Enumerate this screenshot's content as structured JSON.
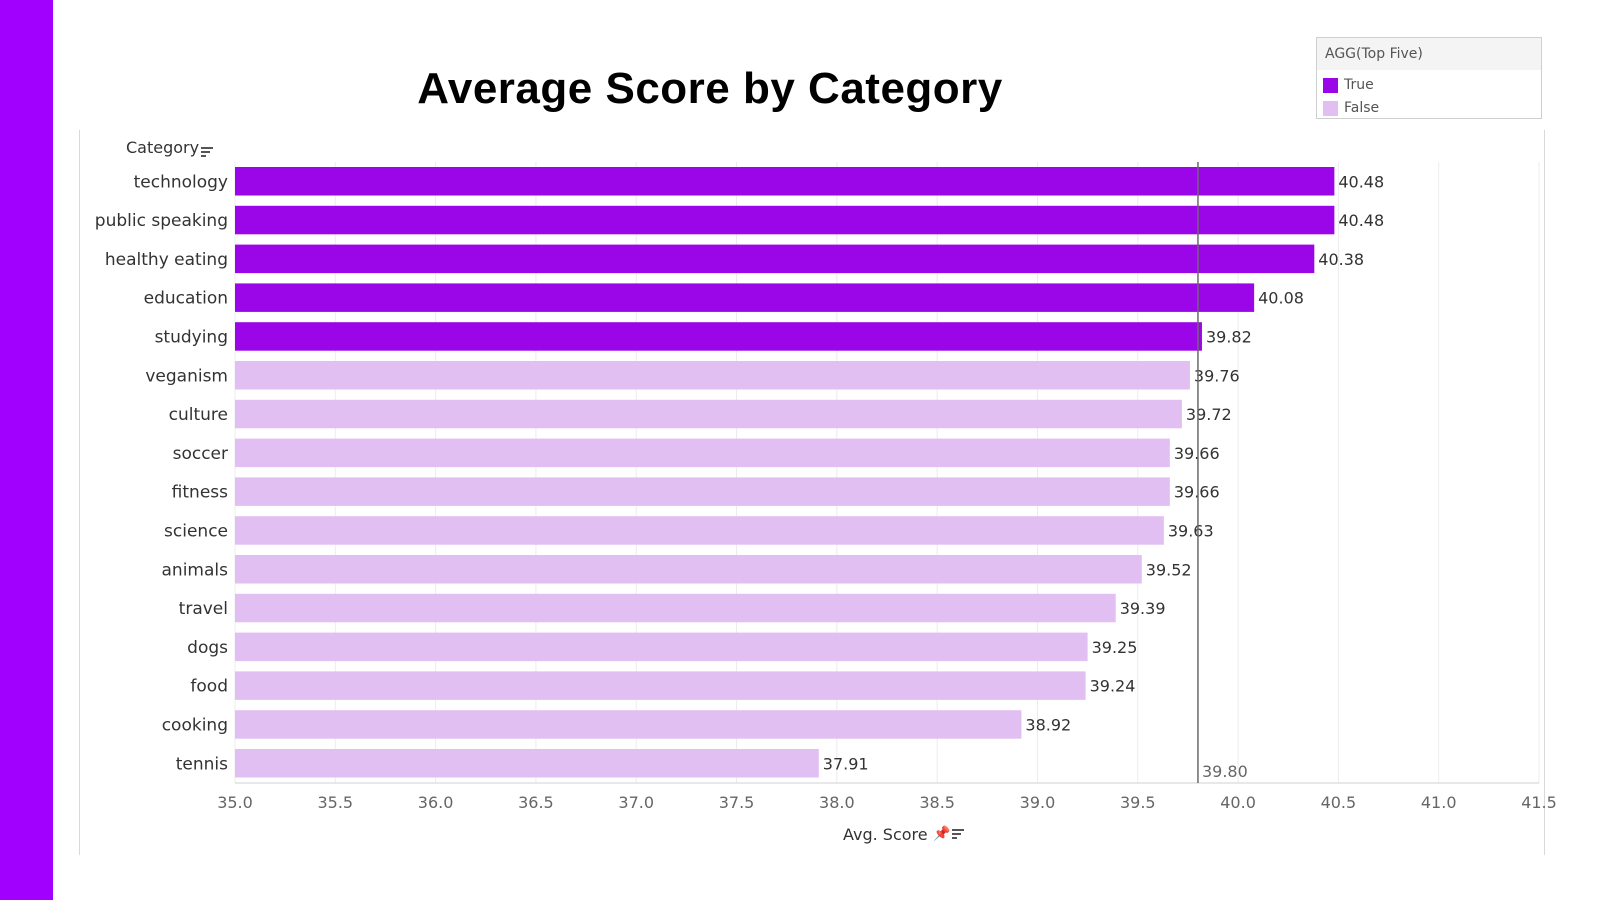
{
  "title": "Average Score by Category",
  "colors": {
    "accent_bar": "#a100ff",
    "true_color": "#9b06e8",
    "false_color": "#e2bff2"
  },
  "legend": {
    "title": "AGG(Top Five)",
    "items": [
      {
        "label": "True",
        "color": "#9b06e8"
      },
      {
        "label": "False",
        "color": "#e2bff2"
      }
    ]
  },
  "icons": {
    "sort": "sort-descending-icon",
    "pin": "pin-icon"
  },
  "chart_data": {
    "type": "bar",
    "orientation": "horizontal",
    "ylabel": "Category",
    "xlabel": "Avg. Score",
    "xlim": [
      35.0,
      41.5
    ],
    "x_ticks": [
      "35.0",
      "35.5",
      "36.0",
      "36.5",
      "37.0",
      "37.5",
      "38.0",
      "38.5",
      "39.0",
      "39.5",
      "40.0",
      "40.5",
      "41.0",
      "41.5"
    ],
    "grid": true,
    "legend_position": "top-right",
    "categories": [
      "technology",
      "public speaking",
      "healthy eating",
      "education",
      "studying",
      "veganism",
      "culture",
      "soccer",
      "fitness",
      "science",
      "animals",
      "travel",
      "dogs",
      "food",
      "cooking",
      "tennis"
    ],
    "values": [
      40.48,
      40.48,
      40.38,
      40.08,
      39.82,
      39.76,
      39.72,
      39.66,
      39.66,
      39.63,
      39.52,
      39.39,
      39.25,
      39.24,
      38.92,
      37.91
    ],
    "value_labels": [
      "40.48",
      "40.48",
      "40.38",
      "40.08",
      "39.82",
      "39.76",
      "39.72",
      "39.66",
      "39.66",
      "39.63",
      "39.52",
      "39.39",
      "39.25",
      "39.24",
      "38.92",
      "37.91"
    ],
    "top_five": [
      true,
      true,
      true,
      true,
      true,
      false,
      false,
      false,
      false,
      false,
      false,
      false,
      false,
      false,
      false,
      false
    ],
    "reference_line": {
      "value": 39.8,
      "label": "39.80"
    }
  }
}
